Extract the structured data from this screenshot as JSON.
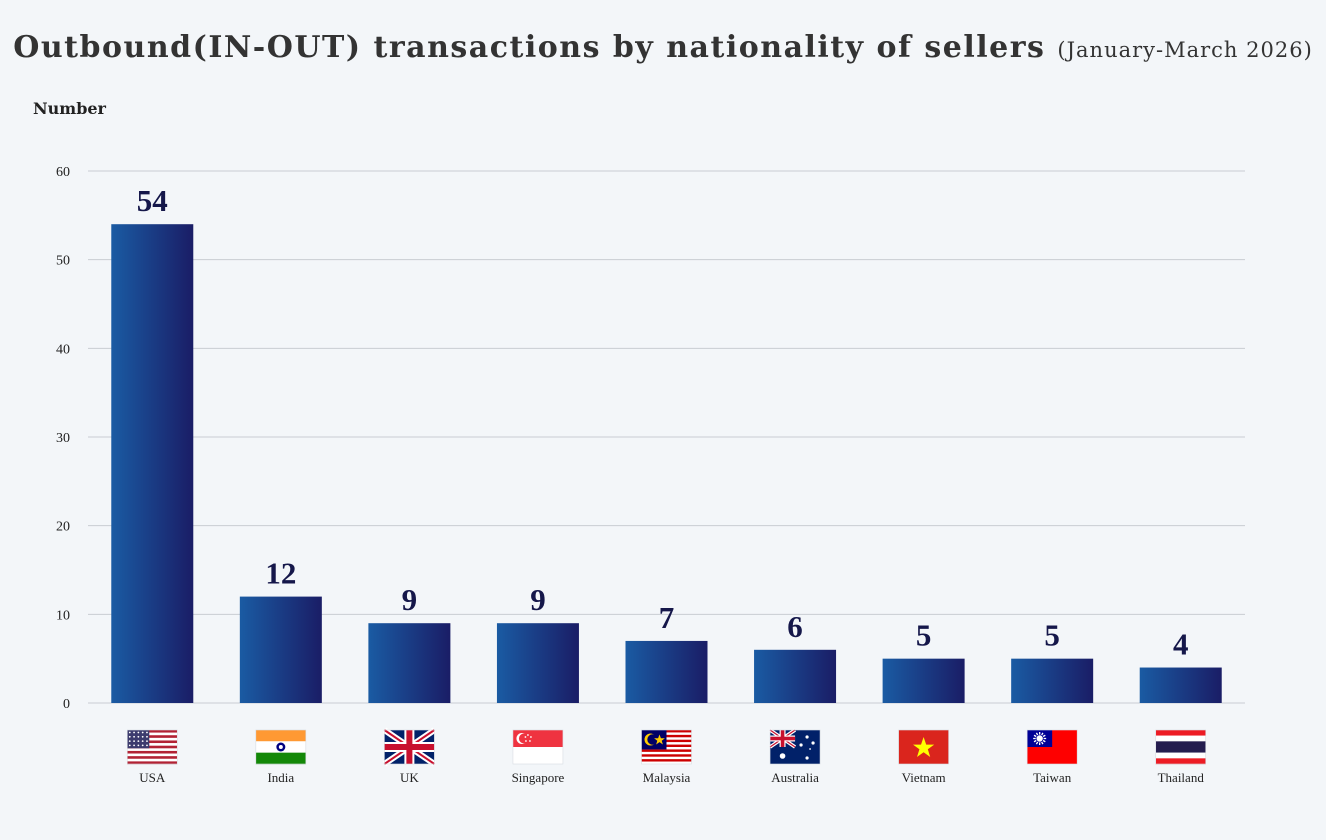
{
  "chart_data": {
    "type": "bar",
    "title": "Outbound(IN-OUT) transactions by nationality of sellers",
    "subtitle": "(January-March 2026)",
    "ylabel": "Number",
    "xlabel": "",
    "ylim": [
      0,
      60
    ],
    "yticks": [
      0,
      10,
      20,
      30,
      40,
      50,
      60
    ],
    "grid": true,
    "categories": [
      "USA",
      "India",
      "UK",
      "Singapore",
      "Malaysia",
      "Australia",
      "Vietnam",
      "Taiwan",
      "Thailand"
    ],
    "values": [
      54,
      12,
      9,
      9,
      7,
      6,
      5,
      5,
      4
    ],
    "flag_icons": [
      "usa-flag-icon",
      "india-flag-icon",
      "uk-flag-icon",
      "singapore-flag-icon",
      "malaysia-flag-icon",
      "australia-flag-icon",
      "vietnam-flag-icon",
      "taiwan-flag-icon",
      "thailand-flag-icon"
    ],
    "colors": {
      "bar_start": "#1a5ba3",
      "bar_end": "#1a1d66",
      "value_label": "#15174a",
      "grid": "#c8ccd2",
      "background": "#f3f6f9"
    }
  }
}
